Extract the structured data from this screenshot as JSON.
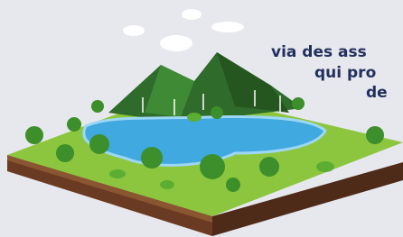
{
  "text": {
    "lines": [
      "via des ass",
      "qui pro",
      "de"
    ]
  }
}
